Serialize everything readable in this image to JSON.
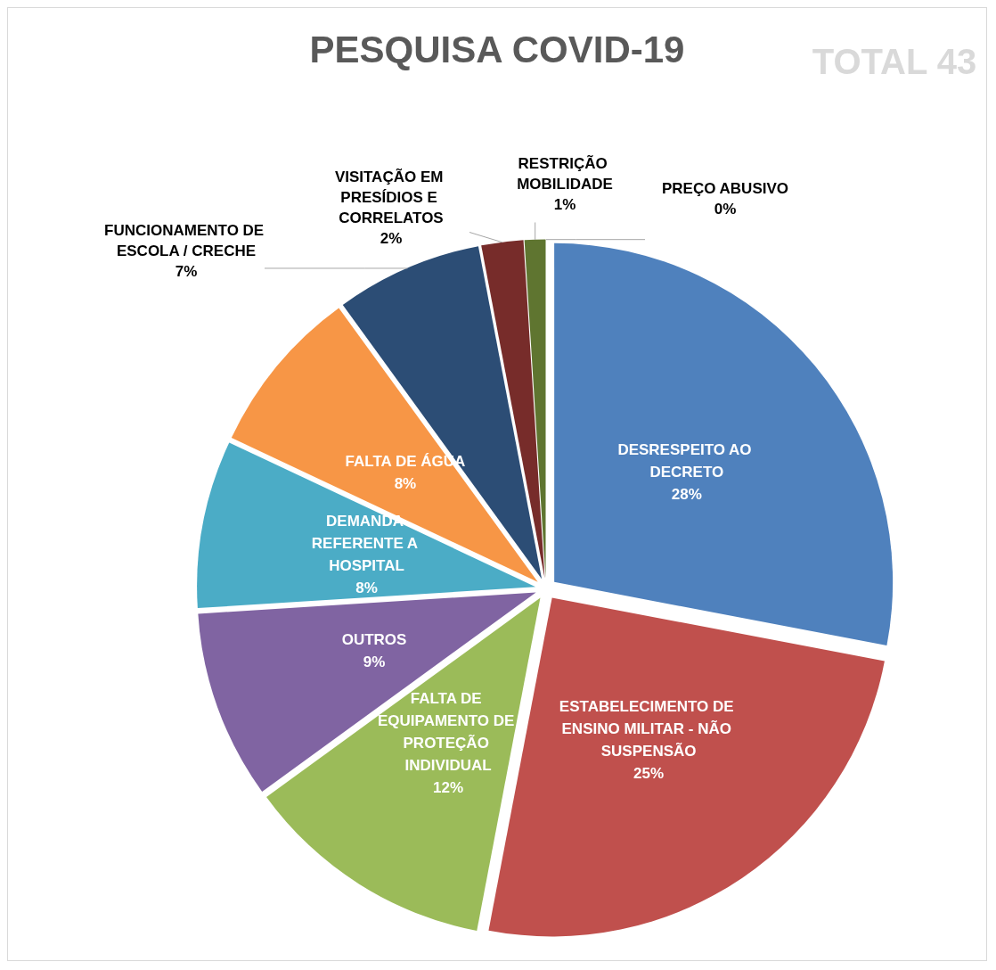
{
  "chart_data": {
    "type": "pie",
    "title": "PESQUISA COVID-19",
    "annotations": [
      "TOTAL 43"
    ],
    "categories": [
      "DESRESPEITO AO DECRETO",
      "ESTABELECIMENTO DE ENSINO MILITAR - NÃO SUSPENSÃO",
      "FALTA DE EQUIPAMENTO DE PROTEÇÃO INDIVIDUAL",
      "OUTROS",
      "DEMANDA REFERENTE A HOSPITAL",
      "FALTA DE ÁGUA",
      "FUNCIONAMENTO DE ESCOLA / CRECHE",
      "VISITAÇÃO EM PRESÍDIOS E CORRELATOS",
      "RESTRIÇÃO MOBILIDADE",
      "PREÇO ABUSIVO"
    ],
    "values": [
      28,
      25,
      12,
      9,
      8,
      8,
      7,
      2,
      1,
      0
    ],
    "value_labels": [
      "28%",
      "25%",
      "12%",
      "9%",
      "8%",
      "8%",
      "7%",
      "2%",
      "1%",
      "0%"
    ],
    "colors": [
      "#4f81bd",
      "#c0504d",
      "#9bbb59",
      "#8064a2",
      "#4bacc6",
      "#f79646",
      "#2c4d75",
      "#772c2a",
      "#5f7530",
      "#4d3b62"
    ],
    "legend": false
  }
}
